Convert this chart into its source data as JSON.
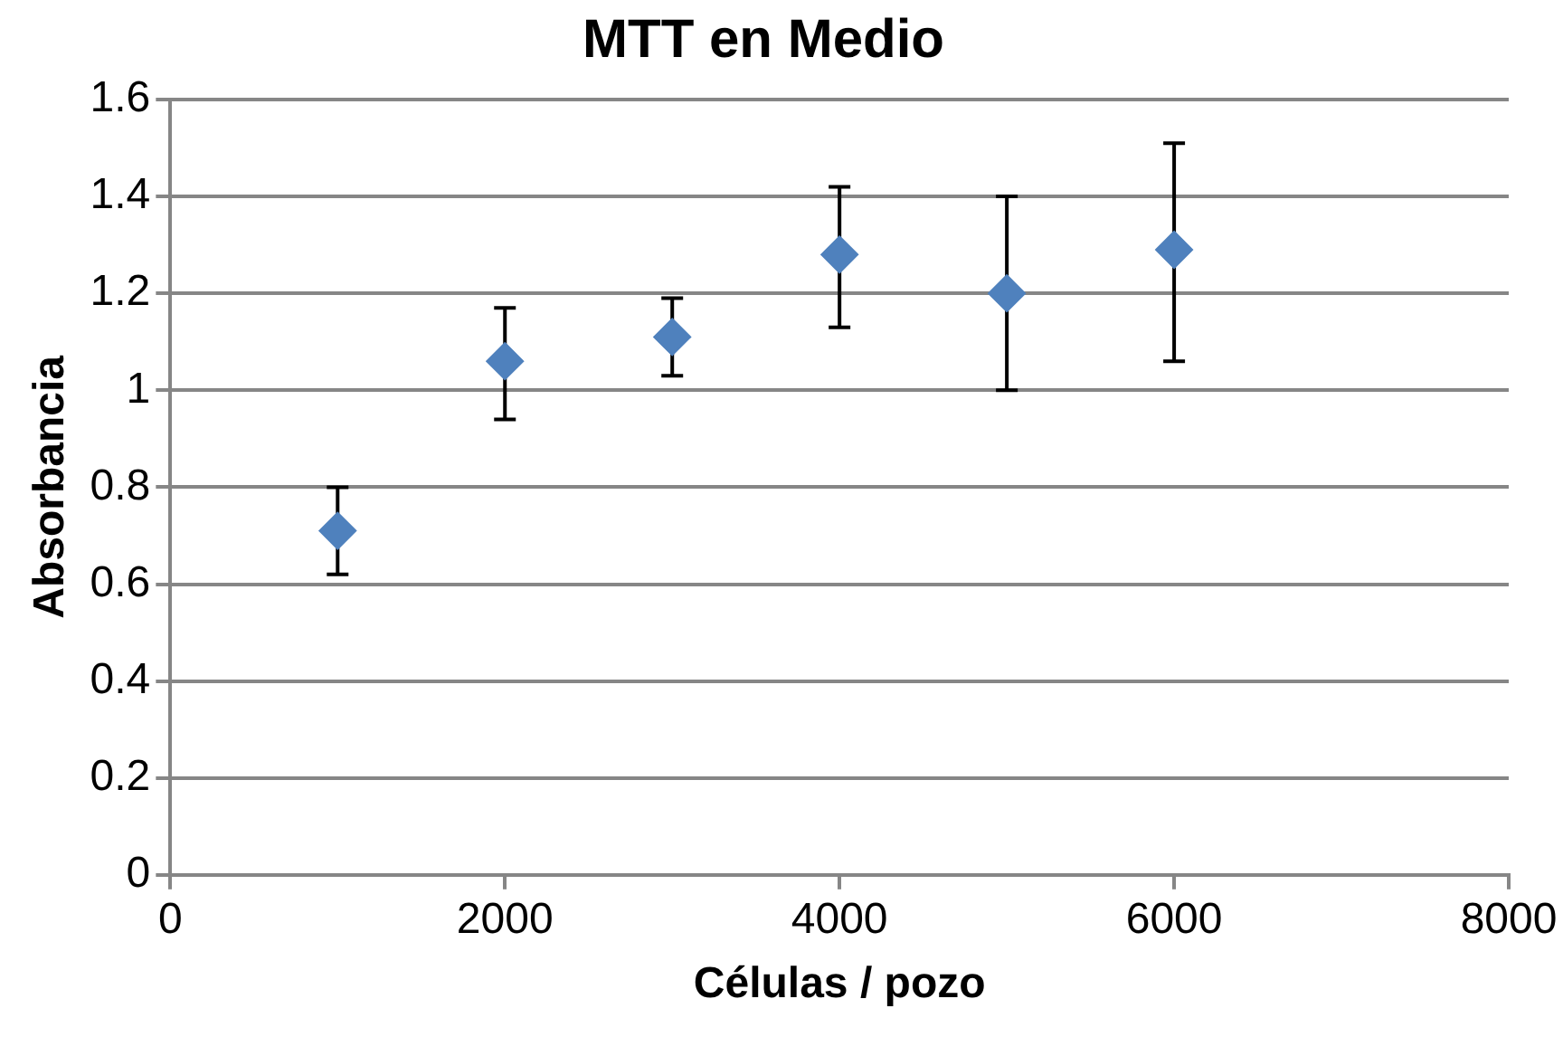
{
  "chart_data": {
    "type": "scatter",
    "title": "MTT en Medio",
    "xlabel": "Células / pozo",
    "ylabel": "Absorbancia",
    "x": [
      1000,
      2000,
      3000,
      4000,
      5000,
      6000
    ],
    "series": [
      {
        "color": "#4f81bd",
        "values": [
          0.71,
          1.06,
          1.11,
          1.28,
          1.2,
          1.29
        ],
        "errors": [
          [
            0.62,
            0.8
          ],
          [
            0.94,
            1.17
          ],
          [
            1.03,
            1.19
          ],
          [
            1.13,
            1.42
          ],
          [
            1.0,
            1.4
          ],
          [
            1.06,
            1.51
          ]
        ]
      }
    ],
    "xlim": [
      0,
      8000
    ],
    "xticks": [
      0,
      2000,
      4000,
      6000,
      8000
    ],
    "ylim": [
      0,
      1.6
    ],
    "yticks": [
      0,
      {
        "value": 0.2,
        "label": "0.2"
      },
      {
        "value": 0.4,
        "label": "0.4"
      },
      {
        "value": 0.6,
        "label": "0.6"
      },
      {
        "value": 0.8,
        "label": "0.8"
      },
      1,
      {
        "value": 1.2,
        "label": "1.2"
      },
      {
        "value": 1.4,
        "label": "1.4"
      },
      {
        "value": 1.6,
        "label": "1.6"
      }
    ],
    "grid": "y",
    "legend": false,
    "marker": "diamond"
  }
}
